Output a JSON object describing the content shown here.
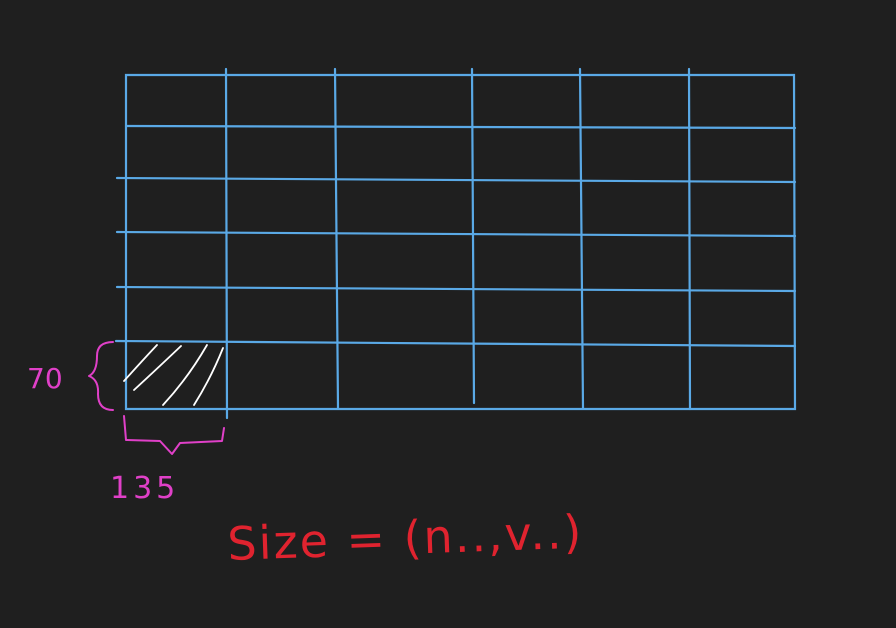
{
  "colors": {
    "background": "#1f1f1f",
    "grid": "#5aa9e6",
    "hatch": "#ffffff",
    "dimension": "#e040c8",
    "formula": "#e0232f"
  },
  "grid": {
    "rows": 6,
    "columns": 6
  },
  "annotations": {
    "height_label": "70",
    "width_label": "135",
    "size_formula": "Size = (n..,v..)"
  }
}
